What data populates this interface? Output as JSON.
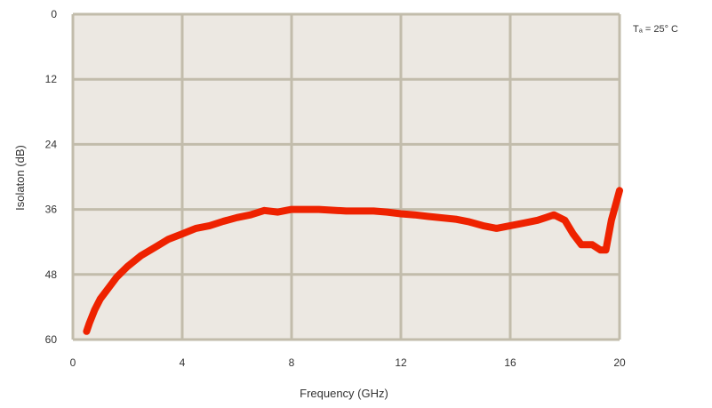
{
  "chart_data": {
    "type": "line",
    "title": "",
    "xlabel": "Frequency (GHz)",
    "ylabel": "Isolaton (dB)",
    "xlim": [
      0,
      20
    ],
    "ylim": [
      0,
      60
    ],
    "y_inverted": true,
    "x_ticks": [
      "0",
      "4",
      "8",
      "12",
      "16",
      "20"
    ],
    "y_ticks": [
      "0",
      "12",
      "24",
      "36",
      "48",
      "60"
    ],
    "grid": true,
    "annotation": "Tₐ = 25° C",
    "colors": {
      "plot_bg": "#ece8e2",
      "grid": "#c2bcab",
      "line": "#ee2200"
    },
    "series": [
      {
        "x": [
          0.5,
          0.6,
          0.8,
          1.0,
          1.3,
          1.6,
          2.0,
          2.5,
          3.0,
          3.5,
          4.0,
          4.5,
          5.0,
          5.5,
          6.0,
          6.5,
          7.0,
          7.5,
          8.0,
          9.0,
          10.0,
          11.0,
          11.5,
          12.0,
          12.5,
          13.0,
          14.0,
          14.5,
          15.0,
          15.5,
          16.0,
          16.5,
          17.0,
          17.3,
          17.6,
          18.0,
          18.3,
          18.6,
          19.0,
          19.3,
          19.5,
          19.7,
          20.0
        ],
        "values": [
          58.5,
          57.0,
          54.5,
          52.5,
          50.5,
          48.5,
          46.5,
          44.5,
          43.0,
          41.5,
          40.5,
          39.5,
          39.0,
          38.2,
          37.5,
          37.0,
          36.2,
          36.5,
          36.0,
          36.0,
          36.3,
          36.3,
          36.5,
          36.8,
          37.0,
          37.3,
          37.8,
          38.3,
          39.0,
          39.5,
          39.0,
          38.5,
          38.0,
          37.5,
          37.0,
          38.0,
          40.5,
          42.5,
          42.5,
          43.5,
          43.5,
          38.0,
          32.5
        ]
      }
    ]
  }
}
